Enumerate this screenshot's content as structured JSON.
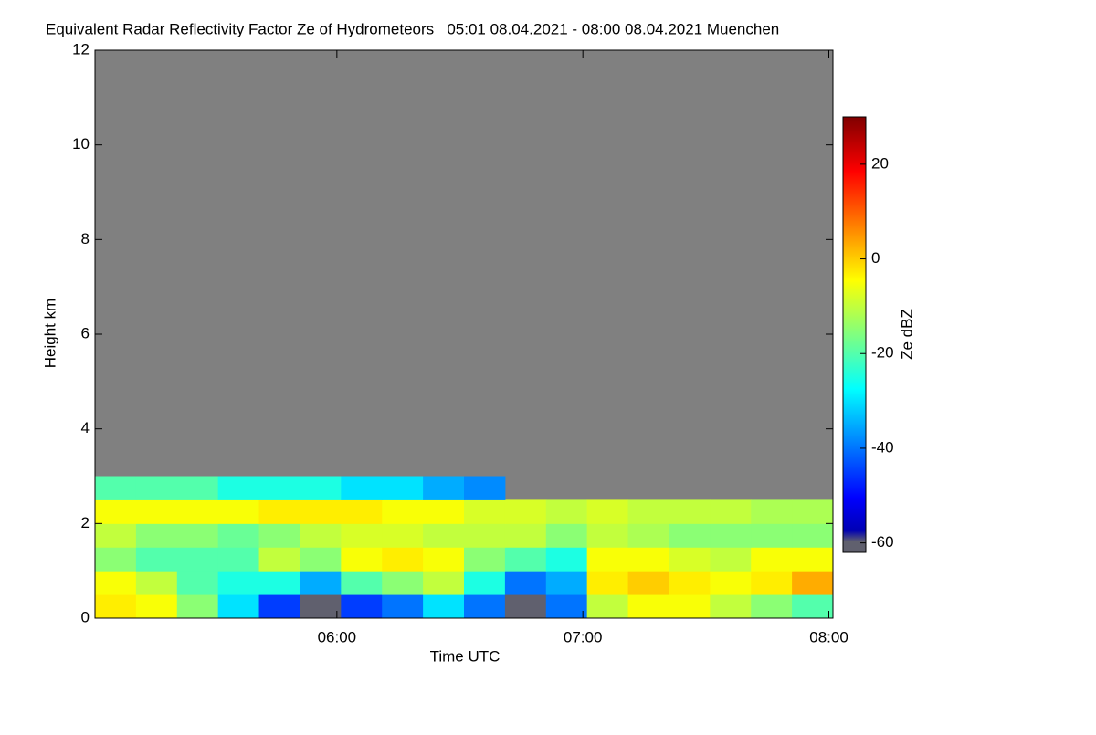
{
  "chart_data": {
    "type": "heatmap",
    "title": "Equivalent Radar Reflectivity Factor Ze of Hydrometeors   05:01 08.04.2021 - 08:00 08.04.2021 Muenchen",
    "xlabel": "Time UTC",
    "ylabel": "Height km",
    "colorbar_label": "Ze dBZ",
    "x_edges": [
      301,
      311,
      321,
      331,
      341,
      351,
      361,
      371,
      381,
      391,
      401,
      411,
      421,
      431,
      441,
      451,
      461,
      471,
      481
    ],
    "y_edges": [
      0,
      0.5,
      1,
      1.5,
      2,
      2.5,
      3
    ],
    "z": [
      [
        -3,
        -5,
        -15,
        -30,
        -45,
        -60,
        -45,
        -40,
        -30,
        -40,
        -60,
        -40,
        -10,
        -5,
        -5,
        -10,
        -15,
        -20
      ],
      [
        -5,
        -10,
        -20,
        -25,
        -25,
        -35,
        -20,
        -15,
        -10,
        -25,
        -40,
        -35,
        -3,
        0,
        -3,
        -5,
        -3,
        3
      ],
      [
        -15,
        -20,
        -20,
        -20,
        -10,
        -15,
        -5,
        -3,
        -5,
        -15,
        -20,
        -25,
        -5,
        -5,
        -8,
        -10,
        -5,
        -5
      ],
      [
        -10,
        -15,
        -15,
        -18,
        -15,
        -10,
        -8,
        -8,
        -10,
        -10,
        -10,
        -15,
        -10,
        -12,
        -15,
        -15,
        -15,
        -15
      ],
      [
        -5,
        -5,
        -5,
        -5,
        -3,
        -3,
        -3,
        -5,
        -5,
        -8,
        -8,
        -10,
        -8,
        -10,
        -10,
        -10,
        -12,
        -12
      ],
      [
        -20,
        -20,
        -20,
        -25,
        -25,
        -25,
        -30,
        -30,
        -35,
        -38,
        null,
        null,
        null,
        null,
        null,
        null,
        null,
        null
      ]
    ],
    "xlim": [
      301,
      481
    ],
    "ylim": [
      0,
      12
    ],
    "xticks": [
      {
        "value": 360,
        "label": "06:00"
      },
      {
        "value": 420,
        "label": "07:00"
      },
      {
        "value": 480,
        "label": "08:00"
      }
    ],
    "yticks": [
      0,
      2,
      4,
      6,
      8,
      10,
      12
    ],
    "clim": [
      -62,
      30
    ],
    "cticks": [
      -60,
      -40,
      -20,
      0,
      20
    ],
    "colormap": "jet",
    "no_data_color": "#808080"
  }
}
